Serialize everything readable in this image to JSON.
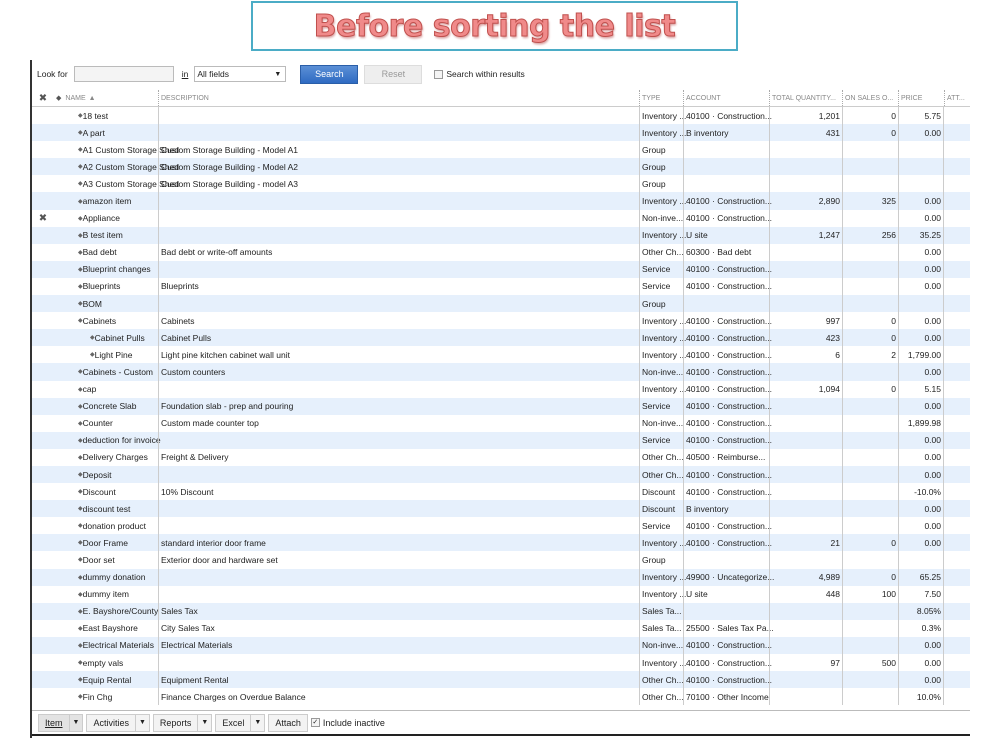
{
  "banner": {
    "title": "Before sorting the list"
  },
  "search": {
    "look_for_label": "Look for",
    "look_for_value": "",
    "in_label": "in",
    "field_select": "All fields",
    "search_button": "Search",
    "reset_button": "Reset",
    "search_within_label": "Search within results",
    "search_within_checked": false
  },
  "columns": {
    "name": "NAME",
    "description": "DESCRIPTION",
    "type": "TYPE",
    "account": "ACCOUNT",
    "total_quantity": "TOTAL QUANTITY...",
    "on_sales_order": "ON SALES O...",
    "price": "PRICE",
    "attach": "ATT...",
    "sort": "ascending by name"
  },
  "rows": [
    {
      "name": "18 test",
      "indent": 0,
      "description": "",
      "type": "Inventory ...",
      "account": "40100 · Construction...",
      "qty": "1,201",
      "on_sales": "0",
      "price": "5.75",
      "inactive": false
    },
    {
      "name": "A part",
      "indent": 0,
      "description": "",
      "type": "Inventory ...",
      "account": "B inventory",
      "qty": "431",
      "on_sales": "0",
      "price": "0.00",
      "inactive": false
    },
    {
      "name": "A1 Custom Storage Shed",
      "indent": 0,
      "description": "Custom Storage Building - Model A1",
      "type": "Group",
      "account": "",
      "qty": "",
      "on_sales": "",
      "price": "",
      "inactive": false
    },
    {
      "name": "A2 Custom Storage Shed",
      "indent": 0,
      "description": "Custom Storage Building - Model A2",
      "type": "Group",
      "account": "",
      "qty": "",
      "on_sales": "",
      "price": "",
      "inactive": false
    },
    {
      "name": "A3 Custom Storage Shed",
      "indent": 0,
      "description": "Custom Storage Building - model A3",
      "type": "Group",
      "account": "",
      "qty": "",
      "on_sales": "",
      "price": "",
      "inactive": false
    },
    {
      "name": "amazon item",
      "indent": 0,
      "description": "",
      "type": "Inventory ...",
      "account": "40100 · Construction...",
      "qty": "2,890",
      "on_sales": "325",
      "price": "0.00",
      "inactive": false
    },
    {
      "name": "Appliance",
      "indent": 0,
      "description": "",
      "type": "Non-inve...",
      "account": "40100 · Construction...",
      "qty": "",
      "on_sales": "",
      "price": "0.00",
      "inactive": true
    },
    {
      "name": "B test item",
      "indent": 0,
      "description": "",
      "type": "Inventory ...",
      "account": "U site",
      "qty": "1,247",
      "on_sales": "256",
      "price": "35.25",
      "inactive": false
    },
    {
      "name": "Bad debt",
      "indent": 0,
      "description": "Bad debt or write-off amounts",
      "type": "Other Ch...",
      "account": "60300 · Bad debt",
      "qty": "",
      "on_sales": "",
      "price": "0.00",
      "inactive": false
    },
    {
      "name": "Blueprint changes",
      "indent": 0,
      "description": "",
      "type": "Service",
      "account": "40100 · Construction...",
      "qty": "",
      "on_sales": "",
      "price": "0.00",
      "inactive": false
    },
    {
      "name": "Blueprints",
      "indent": 0,
      "description": "Blueprints",
      "type": "Service",
      "account": "40100 · Construction...",
      "qty": "",
      "on_sales": "",
      "price": "0.00",
      "inactive": false
    },
    {
      "name": "BOM",
      "indent": 0,
      "description": "",
      "type": "Group",
      "account": "",
      "qty": "",
      "on_sales": "",
      "price": "",
      "inactive": false
    },
    {
      "name": "Cabinets",
      "indent": 0,
      "description": "Cabinets",
      "type": "Inventory ...",
      "account": "40100 · Construction...",
      "qty": "997",
      "on_sales": "0",
      "price": "0.00",
      "inactive": false
    },
    {
      "name": "Cabinet Pulls",
      "indent": 1,
      "description": "Cabinet Pulls",
      "type": "Inventory ...",
      "account": "40100 · Construction...",
      "qty": "423",
      "on_sales": "0",
      "price": "0.00",
      "inactive": false
    },
    {
      "name": "Light Pine",
      "indent": 1,
      "description": "Light pine kitchen cabinet wall unit",
      "type": "Inventory ...",
      "account": "40100 · Construction...",
      "qty": "6",
      "on_sales": "2",
      "price": "1,799.00",
      "inactive": false
    },
    {
      "name": "Cabinets - Custom",
      "indent": 0,
      "description": "Custom counters",
      "type": "Non-inve...",
      "account": "40100 · Construction...",
      "qty": "",
      "on_sales": "",
      "price": "0.00",
      "inactive": false
    },
    {
      "name": "cap",
      "indent": 0,
      "description": "",
      "type": "Inventory ...",
      "account": "40100 · Construction...",
      "qty": "1,094",
      "on_sales": "0",
      "price": "5.15",
      "inactive": false
    },
    {
      "name": "Concrete Slab",
      "indent": 0,
      "description": "Foundation slab - prep and pouring",
      "type": "Service",
      "account": "40100 · Construction...",
      "qty": "",
      "on_sales": "",
      "price": "0.00",
      "inactive": false
    },
    {
      "name": "Counter",
      "indent": 0,
      "description": "Custom made counter top",
      "type": "Non-inve...",
      "account": "40100 · Construction...",
      "qty": "",
      "on_sales": "",
      "price": "1,899.98",
      "inactive": false
    },
    {
      "name": "deduction for invoice",
      "indent": 0,
      "description": "",
      "type": "Service",
      "account": "40100 · Construction...",
      "qty": "",
      "on_sales": "",
      "price": "0.00",
      "inactive": false
    },
    {
      "name": "Delivery Charges",
      "indent": 0,
      "description": "Freight & Delivery",
      "type": "Other Ch...",
      "account": "40500 · Reimburse...",
      "qty": "",
      "on_sales": "",
      "price": "0.00",
      "inactive": false
    },
    {
      "name": "Deposit",
      "indent": 0,
      "description": "",
      "type": "Other Ch...",
      "account": "40100 · Construction...",
      "qty": "",
      "on_sales": "",
      "price": "0.00",
      "inactive": false
    },
    {
      "name": "Discount",
      "indent": 0,
      "description": "10% Discount",
      "type": "Discount",
      "account": "40100 · Construction...",
      "qty": "",
      "on_sales": "",
      "price": "-10.0%",
      "inactive": false
    },
    {
      "name": "discount test",
      "indent": 0,
      "description": "",
      "type": "Discount",
      "account": "B inventory",
      "qty": "",
      "on_sales": "",
      "price": "0.00",
      "inactive": false
    },
    {
      "name": "donation product",
      "indent": 0,
      "description": "",
      "type": "Service",
      "account": "40100 · Construction...",
      "qty": "",
      "on_sales": "",
      "price": "0.00",
      "inactive": false
    },
    {
      "name": "Door Frame",
      "indent": 0,
      "description": "standard interior door frame",
      "type": "Inventory ...",
      "account": "40100 · Construction...",
      "qty": "21",
      "on_sales": "0",
      "price": "0.00",
      "inactive": false
    },
    {
      "name": "Door set",
      "indent": 0,
      "description": "Exterior door and hardware set",
      "type": "Group",
      "account": "",
      "qty": "",
      "on_sales": "",
      "price": "",
      "inactive": false
    },
    {
      "name": "dummy donation",
      "indent": 0,
      "description": "",
      "type": "Inventory ...",
      "account": "49900 · Uncategorize...",
      "qty": "4,989",
      "on_sales": "0",
      "price": "65.25",
      "inactive": false
    },
    {
      "name": "dummy item",
      "indent": 0,
      "description": "",
      "type": "Inventory ...",
      "account": "U site",
      "qty": "448",
      "on_sales": "100",
      "price": "7.50",
      "inactive": false
    },
    {
      "name": "E. Bayshore/County",
      "indent": 0,
      "description": "Sales Tax",
      "type": "Sales Ta...",
      "account": "",
      "qty": "",
      "on_sales": "",
      "price": "8.05%",
      "inactive": false
    },
    {
      "name": "East Bayshore",
      "indent": 0,
      "description": "City Sales Tax",
      "type": "Sales Ta...",
      "account": "25500 · Sales Tax Pa...",
      "qty": "",
      "on_sales": "",
      "price": "0.3%",
      "inactive": false
    },
    {
      "name": "Electrical Materials",
      "indent": 0,
      "description": "Electrical Materials",
      "type": "Non-inve...",
      "account": "40100 · Construction...",
      "qty": "",
      "on_sales": "",
      "price": "0.00",
      "inactive": false
    },
    {
      "name": "empty vals",
      "indent": 0,
      "description": "",
      "type": "Inventory ...",
      "account": "40100 · Construction...",
      "qty": "97",
      "on_sales": "500",
      "price": "0.00",
      "inactive": false
    },
    {
      "name": "Equip Rental",
      "indent": 0,
      "description": "Equipment Rental",
      "type": "Other Ch...",
      "account": "40100 · Construction...",
      "qty": "",
      "on_sales": "",
      "price": "0.00",
      "inactive": false
    },
    {
      "name": "Fin Chg",
      "indent": 0,
      "description": "Finance Charges on Overdue Balance",
      "type": "Other Ch...",
      "account": "70100 · Other Income",
      "qty": "",
      "on_sales": "",
      "price": "10.0%",
      "inactive": false
    }
  ],
  "footer": {
    "item": "Item",
    "activities": "Activities",
    "reports": "Reports",
    "excel": "Excel",
    "attach": "Attach",
    "include_inactive": "Include inactive",
    "include_inactive_checked": true
  },
  "colors": {
    "row_alt": "#e6f0fc",
    "search_button": "#3a75c9",
    "banner_border": "#4bacc6",
    "banner_text": "#f08a8a"
  }
}
